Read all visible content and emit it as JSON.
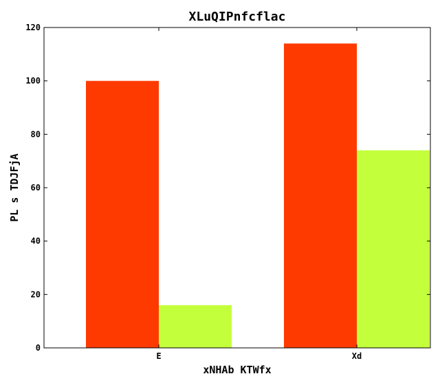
{
  "chart_data": {
    "type": "bar",
    "title": "XLuQIPnfcflac",
    "xlabel": "xNHAb KTWfx",
    "ylabel": "PL s TDJFjA",
    "categories": [
      "E",
      "Xd"
    ],
    "series": [
      {
        "values": [
          100,
          114
        ],
        "color": "#ff3a00"
      },
      {
        "values": [
          16,
          74
        ],
        "color": "#c4ff3c"
      }
    ],
    "ylim": [
      0,
      120
    ],
    "yticks": [
      0,
      20,
      40,
      60,
      80,
      100,
      120
    ],
    "grid": false,
    "legend": "none"
  }
}
